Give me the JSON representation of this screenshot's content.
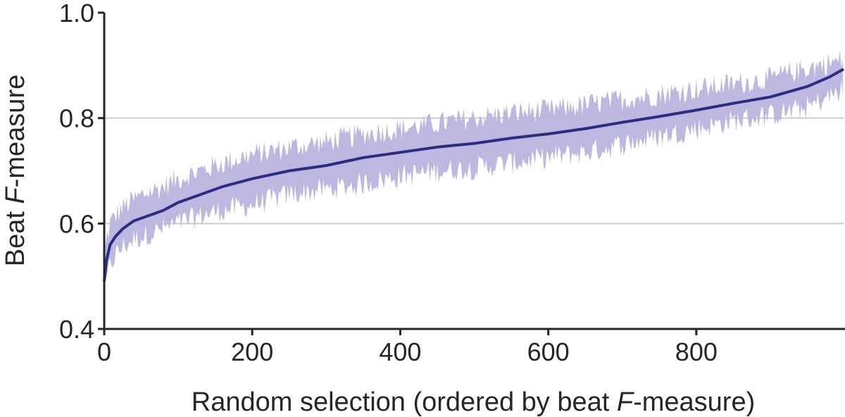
{
  "chart_data": {
    "type": "area",
    "xlabel_parts": [
      "Random selection (ordered by beat ",
      "F",
      "-measure)"
    ],
    "ylabel_parts": [
      "Beat ",
      "F",
      "-measure"
    ],
    "xlim": [
      0,
      999
    ],
    "ylim": [
      0.4,
      1.0
    ],
    "x_ticks": [
      0,
      200,
      400,
      600,
      800
    ],
    "x_tick_labels": [
      "0",
      "200",
      "400",
      "600",
      "800"
    ],
    "y_ticks": [
      0.4,
      0.6,
      0.8,
      1.0
    ],
    "y_tick_labels": [
      "0.4",
      "0.6",
      "0.8",
      "1.0"
    ],
    "grid": "horizontal",
    "colors": {
      "line": "#2b2d82",
      "band": "#b8b4dd",
      "grid": "#cccccc",
      "axis": "#262626"
    },
    "series": [
      {
        "role": "mean",
        "x": [
          0,
          3,
          8,
          15,
          25,
          40,
          60,
          80,
          100,
          130,
          160,
          200,
          250,
          300,
          350,
          400,
          450,
          500,
          550,
          600,
          650,
          700,
          750,
          800,
          850,
          900,
          950,
          980,
          999
        ],
        "y": [
          0.49,
          0.53,
          0.56,
          0.575,
          0.59,
          0.605,
          0.615,
          0.625,
          0.64,
          0.655,
          0.67,
          0.685,
          0.7,
          0.71,
          0.725,
          0.735,
          0.745,
          0.752,
          0.762,
          0.77,
          0.78,
          0.792,
          0.803,
          0.815,
          0.828,
          0.84,
          0.86,
          0.878,
          0.893
        ]
      },
      {
        "role": "band",
        "x": [
          0,
          3,
          8,
          15,
          25,
          40,
          60,
          80,
          100,
          130,
          160,
          200,
          250,
          300,
          350,
          400,
          450,
          500,
          550,
          600,
          650,
          700,
          750,
          800,
          850,
          900,
          950,
          980,
          999
        ],
        "lower": [
          0.46,
          0.49,
          0.52,
          0.54,
          0.555,
          0.57,
          0.58,
          0.59,
          0.6,
          0.615,
          0.625,
          0.635,
          0.655,
          0.665,
          0.675,
          0.69,
          0.7,
          0.705,
          0.715,
          0.725,
          0.735,
          0.75,
          0.765,
          0.78,
          0.795,
          0.805,
          0.82,
          0.84,
          0.855
        ],
        "upper": [
          0.53,
          0.57,
          0.6,
          0.615,
          0.63,
          0.645,
          0.66,
          0.67,
          0.685,
          0.7,
          0.715,
          0.73,
          0.745,
          0.755,
          0.77,
          0.78,
          0.79,
          0.8,
          0.81,
          0.815,
          0.825,
          0.835,
          0.845,
          0.855,
          0.865,
          0.875,
          0.895,
          0.905,
          0.91
        ]
      }
    ]
  }
}
